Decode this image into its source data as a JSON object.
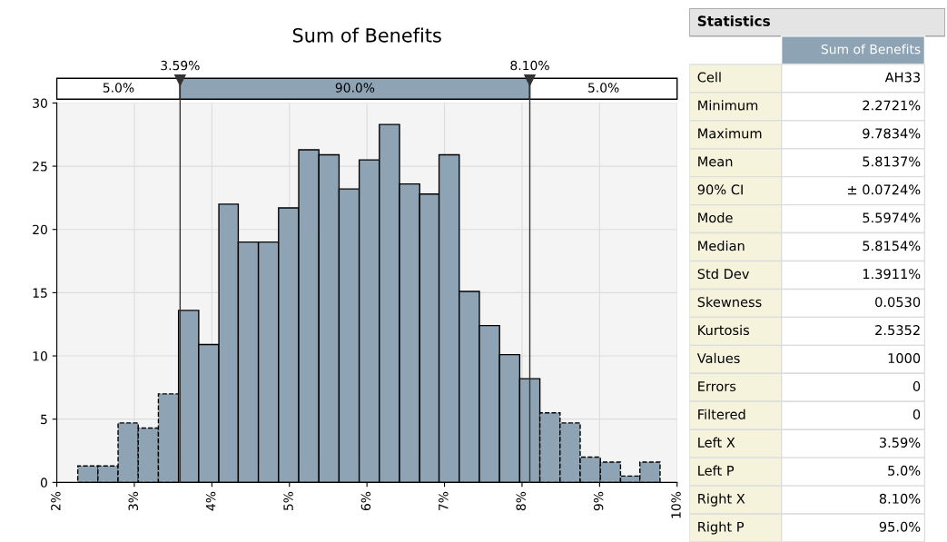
{
  "chart_data": [
    {
      "type": "histogram",
      "title": "Sum of Benefits",
      "color": "#8ea4b5",
      "bins": [
        2.27,
        2.53,
        2.79,
        3.05,
        3.31,
        3.57,
        3.83,
        4.09,
        4.34,
        4.6,
        4.86,
        5.12,
        5.38,
        5.64,
        5.9,
        6.16,
        6.42,
        6.68,
        6.93,
        7.19,
        7.45,
        7.71,
        7.97,
        8.23,
        8.49,
        8.75,
        9.01,
        9.27,
        9.52,
        9.78
      ],
      "values": [
        1.3,
        1.3,
        4.7,
        4.3,
        7.0,
        13.6,
        10.9,
        22.0,
        19.0,
        19.0,
        21.7,
        26.3,
        25.9,
        23.2,
        25.5,
        28.3,
        23.6,
        22.8,
        25.9,
        15.1,
        12.4,
        10.1,
        8.2,
        5.5,
        4.7,
        2.0,
        1.6,
        0.5,
        1.6
      ],
      "xlim": [
        2,
        10
      ],
      "xticks": [
        {
          "value": 2,
          "label": "2%"
        },
        {
          "value": 3,
          "label": "3%"
        },
        {
          "value": 4,
          "label": "4%"
        },
        {
          "value": 5,
          "label": "5%"
        },
        {
          "value": 6,
          "label": "6%"
        },
        {
          "value": 7,
          "label": "7%"
        },
        {
          "value": 8,
          "label": "8%"
        },
        {
          "value": 9,
          "label": "9%"
        },
        {
          "value": 10,
          "label": "10%"
        }
      ],
      "ylim": [
        0,
        30
      ],
      "yticks": [
        0,
        5,
        10,
        15,
        20,
        25,
        30
      ],
      "grid": true,
      "ref_lines": [
        {
          "axis": "x",
          "value": 3.59,
          "label": "3.59%",
          "color": "#333333"
        },
        {
          "axis": "x",
          "value": 8.1,
          "label": "8.10%",
          "color": "#333333"
        }
      ],
      "annotations": [
        "5.0%",
        "90.0%",
        "5.0%"
      ]
    },
    {
      "type": "other",
      "title": "Statistics",
      "subtitle": "Sum of Benefits",
      "categories": [
        "Cell",
        "Minimum",
        "Maximum",
        "Mean",
        "90% CI",
        "Mode",
        "Median",
        "Std Dev",
        "Skewness",
        "Kurtosis",
        "Values",
        "Errors",
        "Filtered",
        "Left X",
        "Left P",
        "Right X",
        "Right P"
      ],
      "value_labels": [
        "AH33",
        "2.2721%",
        "9.7834%",
        "5.8137%",
        "± 0.0724%",
        "5.5974%",
        "5.8154%",
        "1.3911%",
        "0.0530",
        "2.5352",
        "1000",
        "0",
        "0",
        "3.59%",
        "5.0%",
        "8.10%",
        "95.0%"
      ]
    }
  ]
}
